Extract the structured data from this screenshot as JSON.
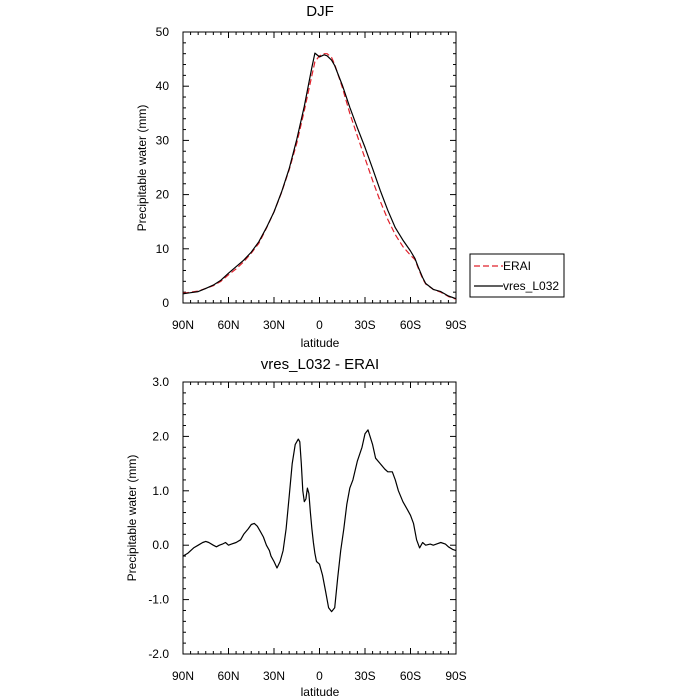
{
  "chart_data": [
    {
      "type": "line",
      "title": "DJF",
      "xlabel": "latitude",
      "ylabel": "Precipitable water (mm)",
      "xlim": [
        90,
        -90
      ],
      "ylim": [
        0,
        50
      ],
      "x_ticks": [
        90,
        60,
        30,
        0,
        -30,
        -60,
        -90
      ],
      "x_tick_labels": [
        "90N",
        "60N",
        "30N",
        "0",
        "30S",
        "60S",
        "90S"
      ],
      "y_ticks": [
        0,
        10,
        20,
        30,
        40,
        50
      ],
      "y_tick_labels": [
        "0",
        "10",
        "20",
        "30",
        "40",
        "50"
      ],
      "legend_position": "right",
      "series": [
        {
          "name": "ERAI",
          "color": "#e0202a",
          "dash": "dashed",
          "x": [
            90,
            85,
            80,
            75,
            70,
            65,
            60,
            55,
            50,
            45,
            40,
            35,
            30,
            25,
            20,
            15,
            10,
            5,
            3,
            0,
            -3,
            -5,
            -8,
            -10,
            -15,
            -20,
            -25,
            -30,
            -35,
            -40,
            -45,
            -50,
            -55,
            -60,
            -63,
            -65,
            -68,
            -70,
            -75,
            -80,
            -85,
            -90
          ],
          "y": [
            1.8,
            2.0,
            2.2,
            2.7,
            3.2,
            4.0,
            5.2,
            6.3,
            7.6,
            9.2,
            11.0,
            13.8,
            16.8,
            20.4,
            24.6,
            29.5,
            35.5,
            42.0,
            44.5,
            45.6,
            46.0,
            46.0,
            45.3,
            44.0,
            39.8,
            35.0,
            30.8,
            26.7,
            22.6,
            18.8,
            15.4,
            12.6,
            10.4,
            8.8,
            8.0,
            6.5,
            4.5,
            3.5,
            2.5,
            2.0,
            1.2,
            0.7
          ]
        },
        {
          "name": "vres_L032",
          "color": "#000000",
          "dash": "solid",
          "x": [
            90,
            85,
            80,
            75,
            70,
            65,
            60,
            55,
            50,
            45,
            40,
            35,
            30,
            25,
            20,
            15,
            10,
            5,
            3,
            0,
            -3,
            -5,
            -8,
            -10,
            -15,
            -20,
            -25,
            -30,
            -35,
            -40,
            -45,
            -50,
            -55,
            -60,
            -63,
            -65,
            -68,
            -70,
            -75,
            -80,
            -85,
            -90
          ],
          "y": [
            1.7,
            1.9,
            2.1,
            2.7,
            3.3,
            4.2,
            5.5,
            6.7,
            7.9,
            9.4,
            11.3,
            13.9,
            16.8,
            20.5,
            24.8,
            30.2,
            36.3,
            43.5,
            46.1,
            45.4,
            45.8,
            45.6,
            44.8,
            43.8,
            40.2,
            36.1,
            32.3,
            28.7,
            24.8,
            20.8,
            17.1,
            13.9,
            11.6,
            9.6,
            8.2,
            6.7,
            4.7,
            3.6,
            2.5,
            2.1,
            1.3,
            0.8
          ]
        }
      ]
    },
    {
      "type": "line",
      "title": "vres_L032 - ERAI",
      "xlabel": "latitude",
      "ylabel": "Precipitable water (mm)",
      "xlim": [
        90,
        -90
      ],
      "ylim": [
        -2.0,
        3.0
      ],
      "x_ticks": [
        90,
        60,
        30,
        0,
        -30,
        -60,
        -90
      ],
      "x_tick_labels": [
        "90N",
        "60N",
        "30N",
        "0",
        "30S",
        "60S",
        "90S"
      ],
      "y_ticks": [
        -2,
        -1,
        0,
        1,
        2,
        3
      ],
      "y_tick_labels": [
        "-2.0",
        "-1.0",
        "0.0",
        "1.0",
        "2.0",
        "3.0"
      ],
      "series": [
        {
          "color": "#000000",
          "dash": "solid",
          "x": [
            90,
            87,
            83,
            80,
            77,
            75,
            73,
            70,
            68,
            66,
            64,
            62,
            60,
            58,
            55,
            52,
            50,
            47,
            45,
            43,
            41,
            39,
            37,
            35,
            33,
            32,
            30,
            28,
            26,
            24,
            22,
            20,
            18,
            16,
            14,
            13,
            12,
            11,
            10,
            9,
            8,
            7,
            6,
            5,
            4,
            3,
            2,
            0,
            -2,
            -4,
            -6,
            -8,
            -10,
            -12,
            -14,
            -16,
            -18,
            -20,
            -22,
            -25,
            -28,
            -30,
            -32,
            -35,
            -37,
            -40,
            -43,
            -45,
            -48,
            -50,
            -52,
            -55,
            -58,
            -60,
            -62,
            -64,
            -66,
            -68,
            -70,
            -73,
            -75,
            -78,
            -80,
            -83,
            -85,
            -88,
            -90
          ],
          "y": [
            -0.2,
            -0.15,
            -0.05,
            0.0,
            0.05,
            0.07,
            0.05,
            0.0,
            -0.03,
            0.0,
            0.02,
            0.05,
            0.0,
            0.02,
            0.05,
            0.1,
            0.2,
            0.3,
            0.38,
            0.4,
            0.35,
            0.25,
            0.15,
            0.0,
            -0.1,
            -0.2,
            -0.3,
            -0.42,
            -0.3,
            -0.1,
            0.3,
            0.9,
            1.5,
            1.85,
            1.95,
            1.9,
            1.5,
            1.0,
            0.8,
            0.85,
            1.05,
            0.95,
            0.6,
            0.3,
            0.05,
            -0.15,
            -0.3,
            -0.35,
            -0.55,
            -0.85,
            -1.15,
            -1.22,
            -1.15,
            -0.6,
            -0.1,
            0.3,
            0.75,
            1.05,
            1.2,
            1.55,
            1.8,
            2.05,
            2.12,
            1.85,
            1.6,
            1.5,
            1.4,
            1.35,
            1.35,
            1.2,
            1.0,
            0.8,
            0.65,
            0.55,
            0.4,
            0.1,
            -0.05,
            0.05,
            0.0,
            0.02,
            0.0,
            0.03,
            0.05,
            0.02,
            -0.03,
            -0.08,
            -0.1
          ]
        }
      ]
    }
  ]
}
